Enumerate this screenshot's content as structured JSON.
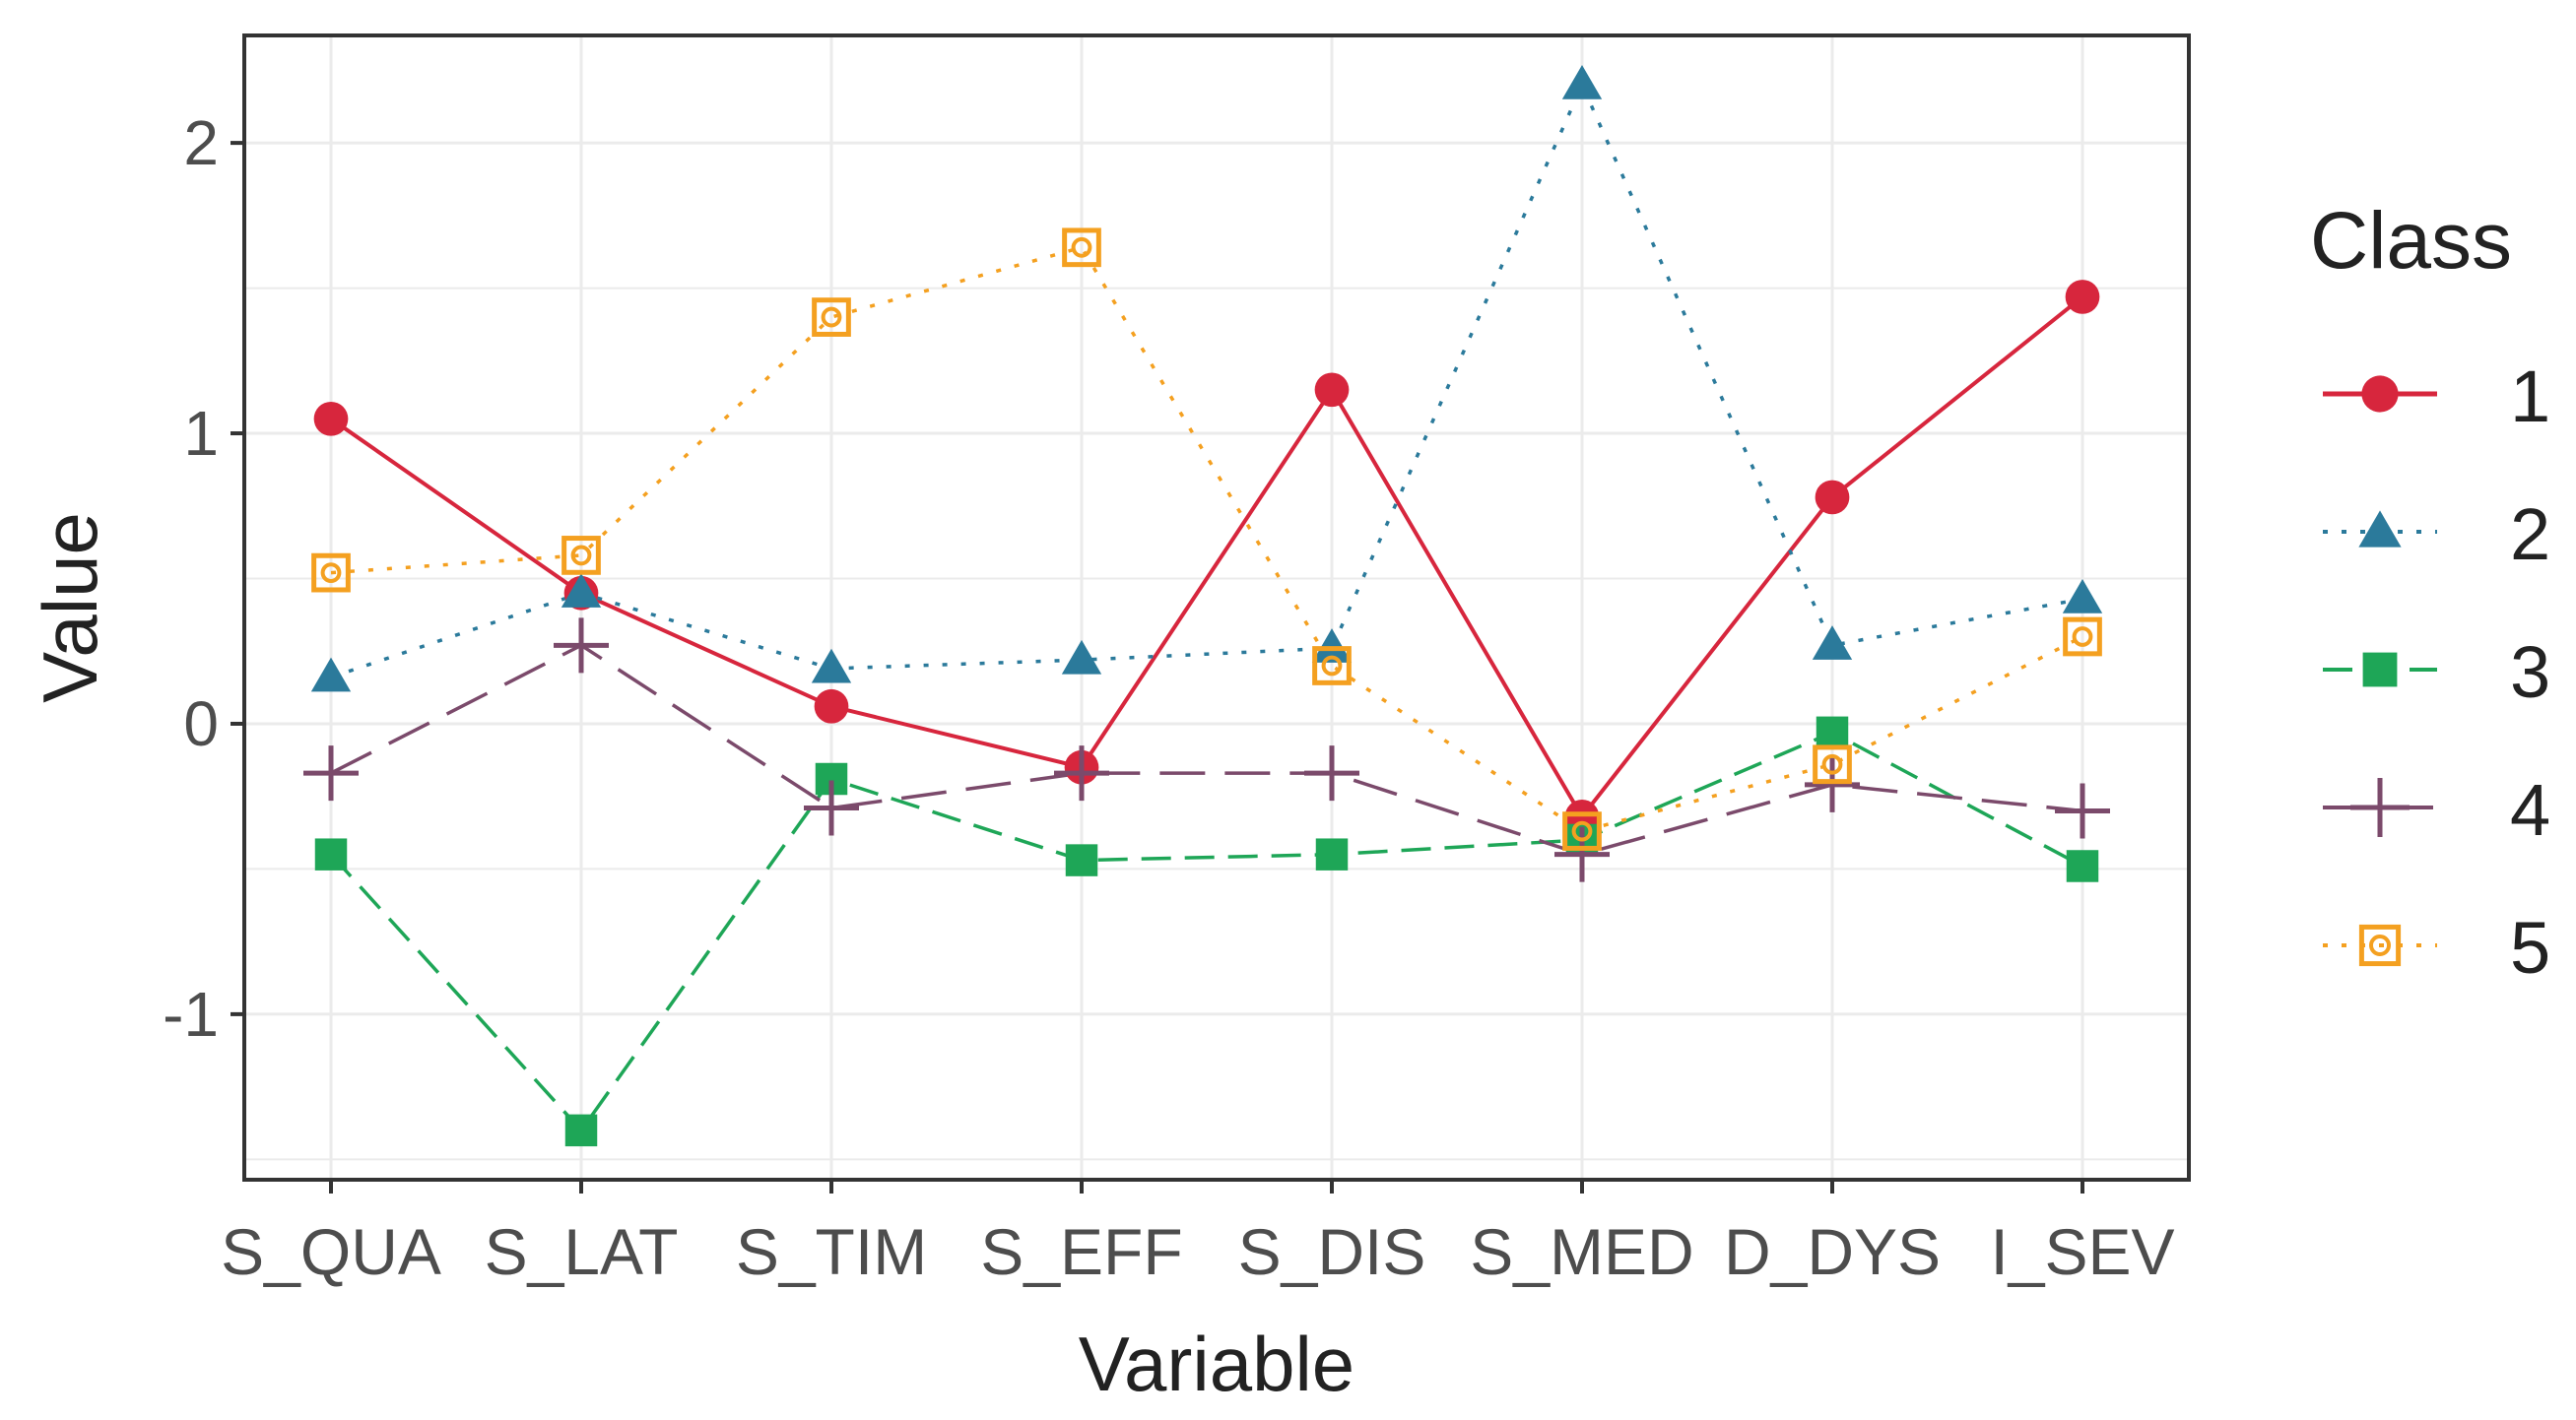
{
  "chart_data": {
    "type": "line",
    "title": "",
    "xlabel": "Variable",
    "ylabel": "Value",
    "ylim": [
      -1.57,
      2.37
    ],
    "yticks": [
      -1,
      0,
      1,
      2
    ],
    "grid": true,
    "categories": [
      "S_QUA",
      "S_LAT",
      "S_TIM",
      "S_EFF",
      "S_DIS",
      "S_MED",
      "D_DYS",
      "I_SEV"
    ],
    "legend": {
      "title": "Class",
      "position": "right"
    },
    "series": [
      {
        "name": "1",
        "color": "#d7263d",
        "line_style": "solid",
        "marker": "circle",
        "values": [
          1.05,
          0.45,
          0.06,
          -0.15,
          1.15,
          -0.32,
          0.78,
          1.47
        ]
      },
      {
        "name": "2",
        "color": "#2b7a9b",
        "line_style": "dotted",
        "marker": "triangle",
        "values": [
          0.16,
          0.45,
          0.19,
          0.22,
          0.26,
          2.2,
          0.27,
          0.43
        ]
      },
      {
        "name": "3",
        "color": "#1ea657",
        "line_style": "dashed",
        "marker": "square",
        "values": [
          -0.45,
          -1.4,
          -0.19,
          -0.47,
          -0.45,
          -0.4,
          -0.03,
          -0.49
        ]
      },
      {
        "name": "4",
        "color": "#7b4a6b",
        "line_style": "longdash",
        "marker": "plus",
        "values": [
          -0.17,
          0.27,
          -0.29,
          -0.17,
          -0.17,
          -0.45,
          -0.21,
          -0.3
        ]
      },
      {
        "name": "5",
        "color": "#f4a020",
        "line_style": "dotted",
        "marker": "square-circle",
        "values": [
          0.52,
          0.58,
          1.4,
          1.64,
          0.2,
          -0.37,
          -0.14,
          0.3
        ]
      }
    ]
  }
}
